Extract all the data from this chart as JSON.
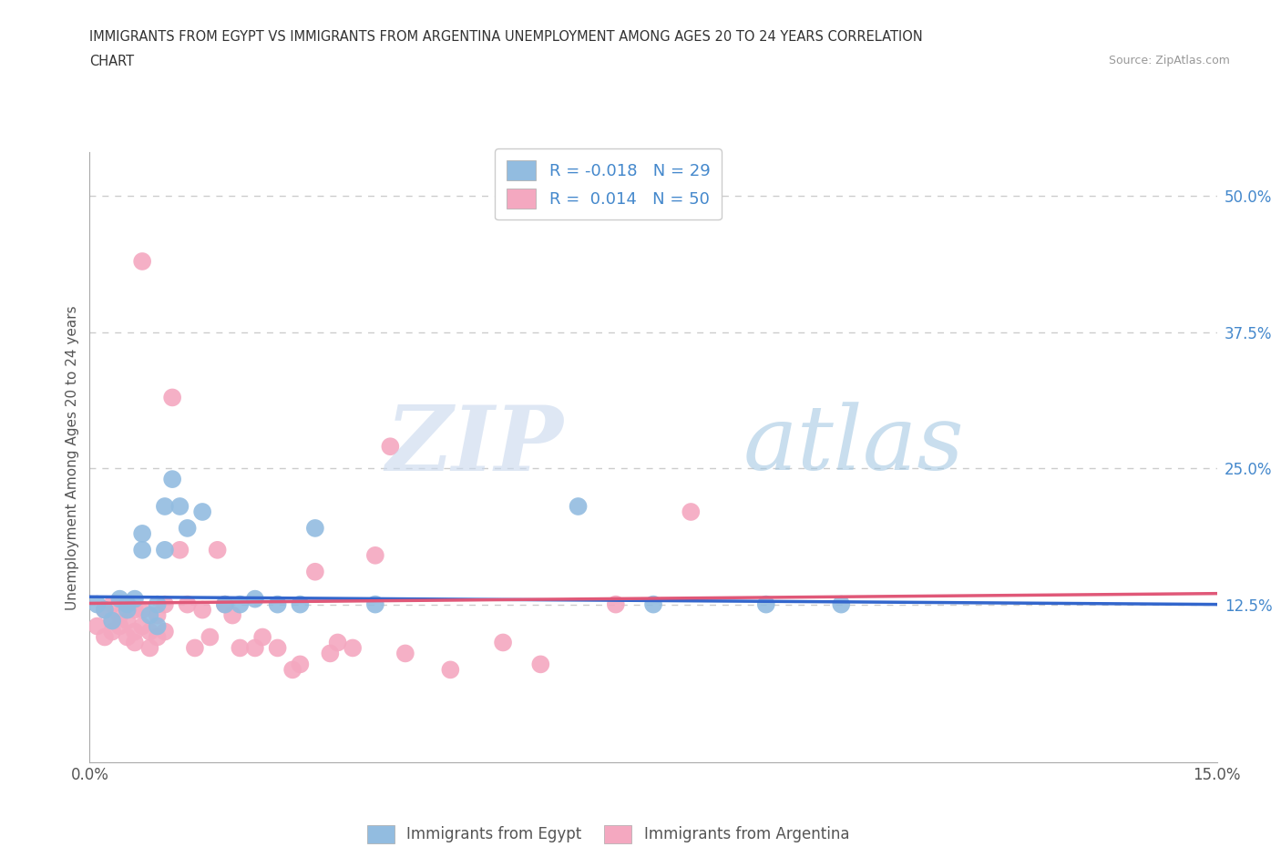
{
  "title_line1": "IMMIGRANTS FROM EGYPT VS IMMIGRANTS FROM ARGENTINA UNEMPLOYMENT AMONG AGES 20 TO 24 YEARS CORRELATION",
  "title_line2": "CHART",
  "source": "Source: ZipAtlas.com",
  "ylabel": "Unemployment Among Ages 20 to 24 years",
  "xlim": [
    0.0,
    0.15
  ],
  "ylim": [
    -0.02,
    0.54
  ],
  "egypt_color": "#92bce0",
  "argentina_color": "#f4a8c0",
  "egypt_label": "Immigrants from Egypt",
  "argentina_label": "Immigrants from Argentina",
  "egypt_R": -0.018,
  "egypt_N": 29,
  "argentina_R": 0.014,
  "argentina_N": 50,
  "egypt_line_color": "#3366cc",
  "argentina_line_color": "#e05878",
  "background_color": "#ffffff",
  "grid_color": "#cccccc",
  "right_axis_color": "#4488cc",
  "title_color": "#333333",
  "source_color": "#999999",
  "egypt_line_start_y": 0.132,
  "egypt_line_end_y": 0.125,
  "argentina_line_start_y": 0.126,
  "argentina_line_end_y": 0.135,
  "egypt_x": [
    0.001,
    0.002,
    0.003,
    0.004,
    0.005,
    0.005,
    0.006,
    0.007,
    0.007,
    0.008,
    0.009,
    0.009,
    0.01,
    0.01,
    0.011,
    0.012,
    0.013,
    0.015,
    0.018,
    0.02,
    0.022,
    0.025,
    0.028,
    0.03,
    0.038,
    0.065,
    0.075,
    0.09,
    0.1
  ],
  "egypt_y": [
    0.125,
    0.12,
    0.11,
    0.13,
    0.125,
    0.12,
    0.13,
    0.175,
    0.19,
    0.115,
    0.125,
    0.105,
    0.175,
    0.215,
    0.24,
    0.215,
    0.195,
    0.21,
    0.125,
    0.125,
    0.13,
    0.125,
    0.125,
    0.195,
    0.125,
    0.215,
    0.125,
    0.125,
    0.125
  ],
  "argentina_x": [
    0.001,
    0.002,
    0.002,
    0.003,
    0.003,
    0.003,
    0.004,
    0.004,
    0.005,
    0.005,
    0.005,
    0.006,
    0.006,
    0.006,
    0.007,
    0.007,
    0.007,
    0.008,
    0.008,
    0.009,
    0.009,
    0.01,
    0.01,
    0.011,
    0.012,
    0.013,
    0.014,
    0.015,
    0.016,
    0.017,
    0.018,
    0.019,
    0.02,
    0.022,
    0.023,
    0.025,
    0.027,
    0.028,
    0.03,
    0.032,
    0.033,
    0.035,
    0.038,
    0.04,
    0.042,
    0.048,
    0.055,
    0.06,
    0.07,
    0.08
  ],
  "argentina_y": [
    0.105,
    0.12,
    0.095,
    0.11,
    0.125,
    0.1,
    0.105,
    0.115,
    0.095,
    0.11,
    0.125,
    0.09,
    0.1,
    0.12,
    0.105,
    0.12,
    0.44,
    0.085,
    0.1,
    0.095,
    0.115,
    0.1,
    0.125,
    0.315,
    0.175,
    0.125,
    0.085,
    0.12,
    0.095,
    0.175,
    0.125,
    0.115,
    0.085,
    0.085,
    0.095,
    0.085,
    0.065,
    0.07,
    0.155,
    0.08,
    0.09,
    0.085,
    0.17,
    0.27,
    0.08,
    0.065,
    0.09,
    0.07,
    0.125,
    0.21
  ]
}
